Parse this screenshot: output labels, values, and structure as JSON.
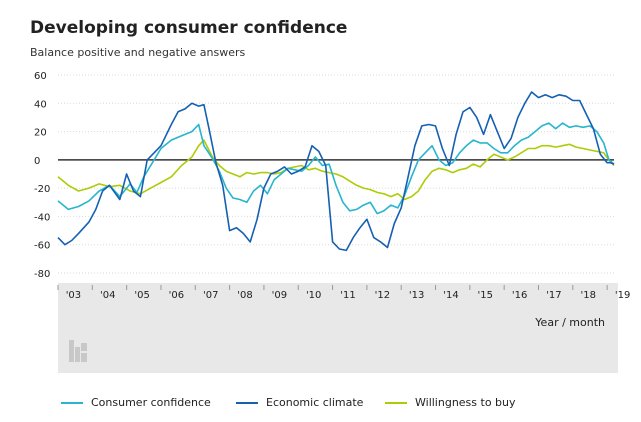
{
  "title": "Developing consumer confidence",
  "subtitle": "Balance positive and negative answers",
  "x_unit_label": "Year / month",
  "colors": {
    "consumer_confidence": "#27B5CF",
    "economic_climate": "#1660B2",
    "willingness_to_buy": "#AFCB06",
    "zero_line": "#333333",
    "plot_band": "#E8E8E8",
    "gridline": "#DADADA"
  },
  "chart_data": {
    "type": "line",
    "ylim": [
      -80,
      60
    ],
    "yticks": [
      "60",
      "40",
      "20",
      "0",
      "-20",
      "-40",
      "-60",
      "-80"
    ],
    "x_tick_labels": [
      "'03",
      "'04",
      "'05",
      "'06",
      "'07",
      "'08",
      "'09",
      "'10",
      "'11",
      "'12",
      "'13",
      "'14",
      "'15",
      "'16",
      "'17",
      "'18",
      "'19"
    ],
    "x_range": [
      2003.0,
      2019.2
    ],
    "grid": "horizontal",
    "legend_position": "bottom",
    "series": [
      {
        "name": "Consumer confidence",
        "x": [
          2003.0,
          2003.3,
          2003.6,
          2003.9,
          2004.2,
          2004.5,
          2004.8,
          2005.1,
          2005.3,
          2005.5,
          2005.8,
          2006.0,
          2006.3,
          2006.6,
          2006.9,
          2007.1,
          2007.25,
          2007.5,
          2007.7,
          2007.9,
          2008.1,
          2008.3,
          2008.5,
          2008.7,
          2008.9,
          2009.1,
          2009.3,
          2009.5,
          2009.7,
          2009.9,
          2010.1,
          2010.3,
          2010.5,
          2010.7,
          2010.9,
          2011.1,
          2011.3,
          2011.5,
          2011.7,
          2011.9,
          2012.1,
          2012.3,
          2012.5,
          2012.7,
          2012.9,
          2013.1,
          2013.3,
          2013.5,
          2013.7,
          2013.9,
          2014.1,
          2014.3,
          2014.5,
          2014.7,
          2014.9,
          2015.1,
          2015.3,
          2015.5,
          2015.7,
          2015.9,
          2016.1,
          2016.3,
          2016.5,
          2016.7,
          2016.9,
          2017.1,
          2017.3,
          2017.5,
          2017.7,
          2017.9,
          2018.1,
          2018.3,
          2018.5,
          2018.7,
          2018.9,
          2019.05,
          2019.2
        ],
        "values": [
          -29,
          -35,
          -33,
          -29,
          -22,
          -18,
          -26,
          -17,
          -23,
          -12,
          0,
          8,
          14,
          17,
          20,
          25,
          10,
          1,
          -8,
          -20,
          -27,
          -28,
          -30,
          -22,
          -18,
          -24,
          -14,
          -10,
          -6,
          -7,
          -8,
          -4,
          2,
          -4,
          -3,
          -18,
          -30,
          -36,
          -35,
          -32,
          -30,
          -38,
          -36,
          -32,
          -34,
          -25,
          -12,
          0,
          5,
          10,
          0,
          -4,
          -2,
          5,
          10,
          14,
          12,
          12,
          8,
          5,
          5,
          10,
          14,
          16,
          20,
          24,
          26,
          22,
          26,
          23,
          24,
          23,
          24,
          20,
          12,
          0,
          -3
        ]
      },
      {
        "name": "Economic climate",
        "x": [
          2003.0,
          2003.2,
          2003.4,
          2003.6,
          2003.9,
          2004.1,
          2004.3,
          2004.5,
          2004.8,
          2005.0,
          2005.2,
          2005.4,
          2005.6,
          2005.8,
          2006.0,
          2006.3,
          2006.5,
          2006.7,
          2006.9,
          2007.1,
          2007.25,
          2007.4,
          2007.6,
          2007.8,
          2008.0,
          2008.2,
          2008.4,
          2008.6,
          2008.8,
          2009.0,
          2009.2,
          2009.4,
          2009.6,
          2009.8,
          2010.0,
          2010.2,
          2010.4,
          2010.6,
          2010.8,
          2011.0,
          2011.2,
          2011.4,
          2011.6,
          2011.8,
          2012.0,
          2012.2,
          2012.4,
          2012.6,
          2012.8,
          2013.0,
          2013.2,
          2013.4,
          2013.6,
          2013.8,
          2014.0,
          2014.2,
          2014.4,
          2014.6,
          2014.8,
          2015.0,
          2015.2,
          2015.4,
          2015.6,
          2015.8,
          2016.0,
          2016.2,
          2016.4,
          2016.6,
          2016.8,
          2017.0,
          2017.2,
          2017.4,
          2017.6,
          2017.8,
          2018.0,
          2018.2,
          2018.4,
          2018.6,
          2018.8,
          2019.0,
          2019.1,
          2019.2
        ],
        "values": [
          -55,
          -60,
          -57,
          -52,
          -44,
          -35,
          -22,
          -18,
          -28,
          -10,
          -22,
          -26,
          0,
          5,
          10,
          25,
          34,
          36,
          40,
          38,
          39,
          22,
          -2,
          -18,
          -50,
          -48,
          -52,
          -58,
          -42,
          -20,
          -10,
          -8,
          -5,
          -10,
          -8,
          -5,
          10,
          6,
          -4,
          -58,
          -63,
          -64,
          -55,
          -48,
          -42,
          -55,
          -58,
          -62,
          -45,
          -34,
          -12,
          10,
          24,
          25,
          24,
          8,
          -4,
          18,
          34,
          37,
          30,
          18,
          32,
          20,
          8,
          15,
          30,
          40,
          48,
          44,
          46,
          44,
          46,
          45,
          42,
          42,
          32,
          22,
          4,
          -2,
          -2,
          -3
        ]
      },
      {
        "name": "Willingness to buy",
        "x": [
          2003.0,
          2003.3,
          2003.6,
          2003.9,
          2004.2,
          2004.5,
          2004.8,
          2005.1,
          2005.4,
          2005.7,
          2006.0,
          2006.3,
          2006.6,
          2006.9,
          2007.1,
          2007.25,
          2007.5,
          2007.7,
          2007.9,
          2008.1,
          2008.3,
          2008.5,
          2008.7,
          2008.9,
          2009.1,
          2009.3,
          2009.5,
          2009.7,
          2009.9,
          2010.1,
          2010.3,
          2010.5,
          2010.7,
          2010.9,
          2011.1,
          2011.3,
          2011.5,
          2011.7,
          2011.9,
          2012.1,
          2012.3,
          2012.5,
          2012.7,
          2012.9,
          2013.1,
          2013.3,
          2013.5,
          2013.7,
          2013.9,
          2014.1,
          2014.3,
          2014.5,
          2014.7,
          2014.9,
          2015.1,
          2015.3,
          2015.5,
          2015.7,
          2015.9,
          2016.1,
          2016.3,
          2016.5,
          2016.7,
          2016.9,
          2017.1,
          2017.3,
          2017.5,
          2017.7,
          2017.9,
          2018.1,
          2018.3,
          2018.5,
          2018.7,
          2018.9,
          2019.05,
          2019.2
        ],
        "values": [
          -12,
          -18,
          -22,
          -20,
          -17,
          -19,
          -18,
          -22,
          -24,
          -20,
          -16,
          -12,
          -4,
          2,
          10,
          14,
          2,
          -4,
          -8,
          -10,
          -12,
          -9,
          -10,
          -9,
          -9,
          -10,
          -9,
          -6,
          -5,
          -4,
          -7,
          -6,
          -8,
          -9,
          -10,
          -12,
          -15,
          -18,
          -20,
          -21,
          -23,
          -24,
          -26,
          -24,
          -28,
          -26,
          -22,
          -14,
          -8,
          -6,
          -7,
          -9,
          -7,
          -6,
          -3,
          -5,
          0,
          4,
          2,
          0,
          2,
          5,
          8,
          8,
          10,
          10,
          9,
          10,
          11,
          9,
          8,
          7,
          6,
          5,
          0,
          -4
        ]
      }
    ]
  }
}
